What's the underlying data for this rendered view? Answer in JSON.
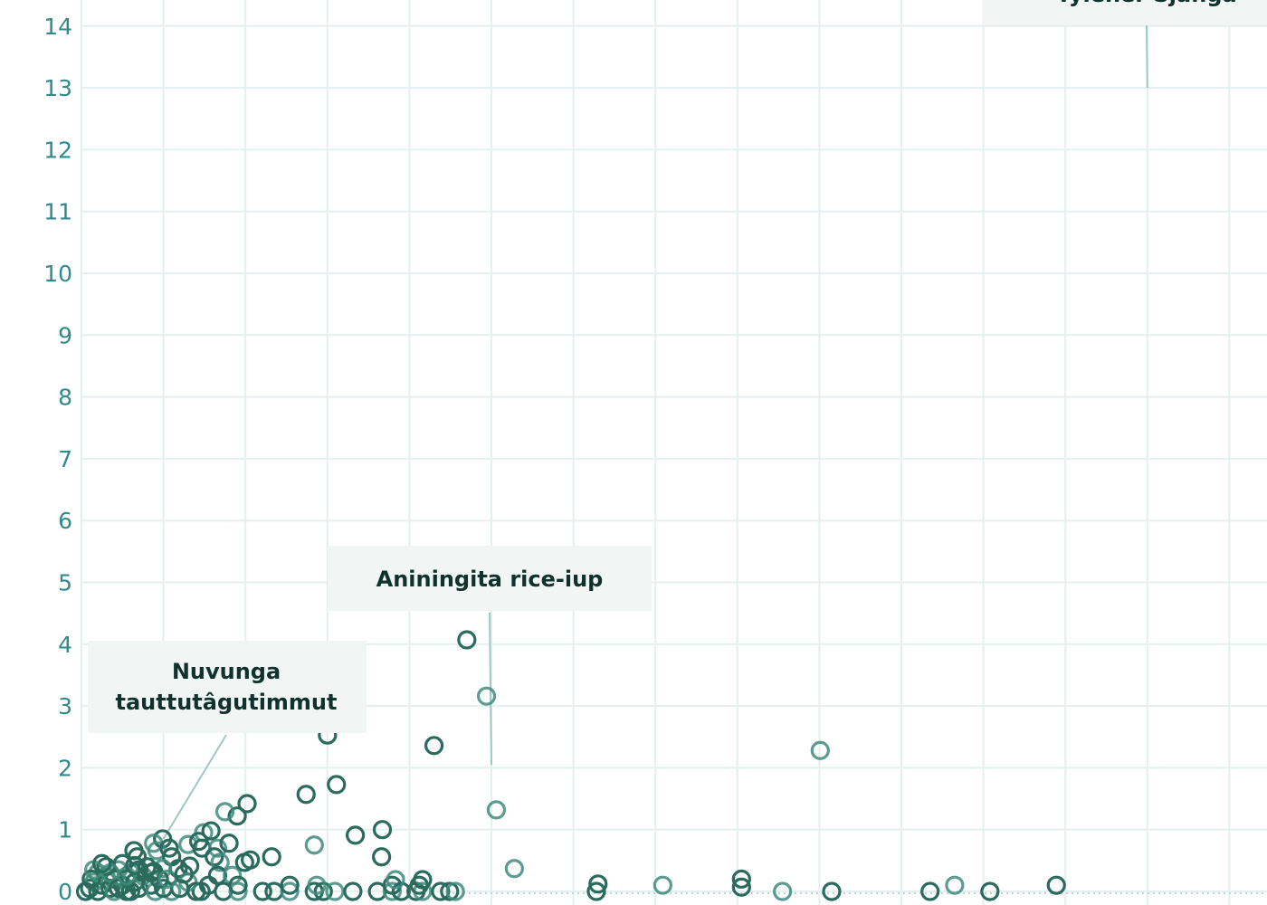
{
  "chart_data": {
    "type": "scatter",
    "title": "",
    "xlabel": "",
    "ylabel": "",
    "ylim": [
      0,
      14
    ],
    "xlim": [
      0,
      14
    ],
    "yticks": [
      "0",
      "1",
      "2",
      "3",
      "4",
      "5",
      "6",
      "7",
      "8",
      "9",
      "10",
      "11",
      "12",
      "13",
      "14"
    ],
    "grid": true,
    "marker": "hollow-circle",
    "colors": {
      "marker": "#2a6b5e",
      "marker_light": "#3f8b7c",
      "tick": "#2f8a8e",
      "grid": "#e3f0ef",
      "annotation_bg": "#f1f6f5",
      "leader": "#9cc9c2"
    },
    "annotations": [
      {
        "lines": [
          "Nuvunga",
          "tauttutâgutimmut"
        ],
        "target": [
          1.0,
          0.85
        ]
      },
      {
        "lines": [
          "Aniningita rice-iup"
        ],
        "target": [
          5.0,
          2.05
        ]
      },
      {
        "lines": [
          "Tylener Sjanga"
        ],
        "target": [
          13.0,
          13.0
        ]
      }
    ],
    "points": [
      [
        4.7,
        4.07
      ],
      [
        4.94,
        3.16
      ],
      [
        4.3,
        2.36
      ],
      [
        3.0,
        2.53
      ],
      [
        9.01,
        2.28
      ],
      [
        3.11,
        1.73
      ],
      [
        2.74,
        1.57
      ],
      [
        5.06,
        1.32
      ],
      [
        2.02,
        1.42
      ],
      [
        1.9,
        1.22
      ],
      [
        1.75,
        1.29
      ],
      [
        3.34,
        0.91
      ],
      [
        3.67,
        1.0
      ],
      [
        2.84,
        0.75
      ],
      [
        3.66,
        0.56
      ],
      [
        2.32,
        0.56
      ],
      [
        5.28,
        0.37
      ],
      [
        6.3,
        0.12
      ],
      [
        6.28,
        0.0
      ],
      [
        7.09,
        0.1
      ],
      [
        8.05,
        0.2
      ],
      [
        8.05,
        0.07
      ],
      [
        8.55,
        0.0
      ],
      [
        9.15,
        0.0
      ],
      [
        10.35,
        0.0
      ],
      [
        10.65,
        0.1
      ],
      [
        11.08,
        0.0
      ],
      [
        11.89,
        0.1
      ],
      [
        1.49,
        0.95
      ],
      [
        1.58,
        0.98
      ],
      [
        0.99,
        0.85
      ],
      [
        0.88,
        0.78
      ],
      [
        0.64,
        0.66
      ],
      [
        0.68,
        0.56
      ],
      [
        0.92,
        0.66
      ],
      [
        1.07,
        0.7
      ],
      [
        1.1,
        0.56
      ],
      [
        1.3,
        0.76
      ],
      [
        1.43,
        0.81
      ],
      [
        1.47,
        0.7
      ],
      [
        1.66,
        0.7
      ],
      [
        1.8,
        0.78
      ],
      [
        1.62,
        0.56
      ],
      [
        1.69,
        0.47
      ],
      [
        1.32,
        0.41
      ],
      [
        1.18,
        0.37
      ],
      [
        0.99,
        0.37
      ],
      [
        0.88,
        0.32
      ],
      [
        1.66,
        0.26
      ],
      [
        1.84,
        0.26
      ],
      [
        1.99,
        0.47
      ],
      [
        2.06,
        0.51
      ],
      [
        1.1,
        0.0
      ],
      [
        1.46,
        0.0
      ],
      [
        1.73,
        0.0
      ],
      [
        1.91,
        0.0
      ],
      [
        2.21,
        0.0
      ],
      [
        2.35,
        0.0
      ],
      [
        2.54,
        0.0
      ],
      [
        2.84,
        0.0
      ],
      [
        2.95,
        0.0
      ],
      [
        3.09,
        0.0
      ],
      [
        3.31,
        0.0
      ],
      [
        3.61,
        0.0
      ],
      [
        3.79,
        0.0
      ],
      [
        3.9,
        0.0
      ],
      [
        4.08,
        0.0
      ],
      [
        4.16,
        0.0
      ],
      [
        4.38,
        0.0
      ],
      [
        4.49,
        0.0
      ],
      [
        4.56,
        0.0
      ],
      [
        1.91,
        0.1
      ],
      [
        2.54,
        0.1
      ],
      [
        2.87,
        0.1
      ],
      [
        3.79,
        0.1
      ],
      [
        4.12,
        0.1
      ],
      [
        3.83,
        0.19
      ],
      [
        4.16,
        0.19
      ],
      [
        0.1,
        0.05
      ],
      [
        0.15,
        0.15
      ],
      [
        0.2,
        0.0
      ],
      [
        0.25,
        0.1
      ],
      [
        0.3,
        0.25
      ],
      [
        0.35,
        0.05
      ],
      [
        0.4,
        0.2
      ],
      [
        0.45,
        0.35
      ],
      [
        0.5,
        0.1
      ],
      [
        0.55,
        0.0
      ],
      [
        0.6,
        0.3
      ],
      [
        0.65,
        0.15
      ],
      [
        0.7,
        0.05
      ],
      [
        0.75,
        0.25
      ],
      [
        0.8,
        0.4
      ],
      [
        0.85,
        0.1
      ],
      [
        0.9,
        0.0
      ],
      [
        0.95,
        0.2
      ],
      [
        1.0,
        0.05
      ],
      [
        0.2,
        0.3
      ],
      [
        0.3,
        0.4
      ],
      [
        0.5,
        0.45
      ],
      [
        0.4,
        0.0
      ],
      [
        0.6,
        0.0
      ],
      [
        0.12,
        0.2
      ],
      [
        0.35,
        0.3
      ],
      [
        0.7,
        0.35
      ],
      [
        1.2,
        0.05
      ],
      [
        1.3,
        0.15
      ],
      [
        1.4,
        0.0
      ],
      [
        0.05,
        0.0
      ],
      [
        0.15,
        0.35
      ],
      [
        0.25,
        0.45
      ],
      [
        0.45,
        0.05
      ],
      [
        0.55,
        0.25
      ],
      [
        0.65,
        0.42
      ],
      [
        0.85,
        0.3
      ],
      [
        1.05,
        0.2
      ],
      [
        1.25,
        0.28
      ],
      [
        1.55,
        0.1
      ]
    ]
  }
}
